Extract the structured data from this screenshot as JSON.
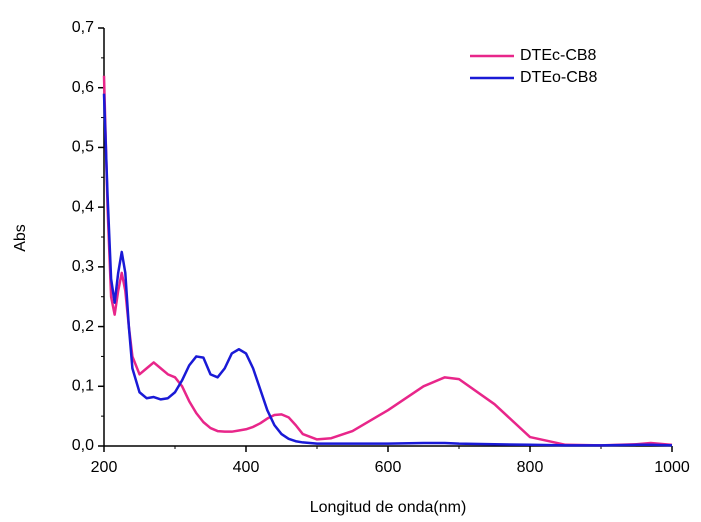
{
  "chart_data": {
    "type": "line",
    "xlabel": "Longitud de onda(nm)",
    "ylabel": "Abs",
    "x": [
      200,
      205,
      210,
      215,
      220,
      225,
      230,
      235,
      240,
      250,
      260,
      270,
      280,
      290,
      300,
      310,
      320,
      330,
      340,
      350,
      360,
      370,
      380,
      390,
      400,
      410,
      420,
      430,
      440,
      450,
      460,
      470,
      480,
      500,
      520,
      550,
      600,
      650,
      680,
      700,
      750,
      800,
      850,
      900,
      950,
      970,
      1000
    ],
    "series": [
      {
        "name": "DTEc-CB8",
        "color": "#e8268a",
        "values": [
          0.62,
          0.4,
          0.25,
          0.22,
          0.26,
          0.29,
          0.26,
          0.2,
          0.15,
          0.12,
          0.13,
          0.14,
          0.13,
          0.12,
          0.115,
          0.1,
          0.075,
          0.055,
          0.04,
          0.03,
          0.025,
          0.024,
          0.024,
          0.026,
          0.028,
          0.032,
          0.038,
          0.046,
          0.052,
          0.053,
          0.048,
          0.035,
          0.02,
          0.011,
          0.013,
          0.025,
          0.06,
          0.1,
          0.115,
          0.112,
          0.07,
          0.015,
          0.002,
          0.001,
          0.003,
          0.005,
          0.002
        ]
      },
      {
        "name": "DTEo-CB8",
        "color": "#1a1ad6",
        "values": [
          0.59,
          0.42,
          0.28,
          0.24,
          0.29,
          0.325,
          0.29,
          0.2,
          0.13,
          0.09,
          0.08,
          0.082,
          0.078,
          0.08,
          0.09,
          0.11,
          0.135,
          0.15,
          0.148,
          0.12,
          0.115,
          0.13,
          0.155,
          0.162,
          0.155,
          0.13,
          0.095,
          0.06,
          0.035,
          0.02,
          0.012,
          0.008,
          0.006,
          0.004,
          0.004,
          0.004,
          0.004,
          0.005,
          0.005,
          0.004,
          0.003,
          0.002,
          0.001,
          0.001,
          0.002,
          0.002,
          0.001
        ]
      }
    ],
    "xlim": [
      200,
      1000
    ],
    "xticks": [
      200,
      400,
      600,
      800,
      1000
    ],
    "ylim": [
      0,
      0.7
    ],
    "yticks": [
      {
        "value": 0,
        "label": "0,0"
      },
      {
        "value": 0.1,
        "label": "0,1"
      },
      {
        "value": 0.2,
        "label": "0,2"
      },
      {
        "value": 0.3,
        "label": "0,3"
      },
      {
        "value": 0.4,
        "label": "0,4"
      },
      {
        "value": 0.5,
        "label": "0,5"
      },
      {
        "value": 0.6,
        "label": "0,6"
      },
      {
        "value": 0.7,
        "label": "0,7"
      }
    ],
    "legend": "upper right"
  }
}
